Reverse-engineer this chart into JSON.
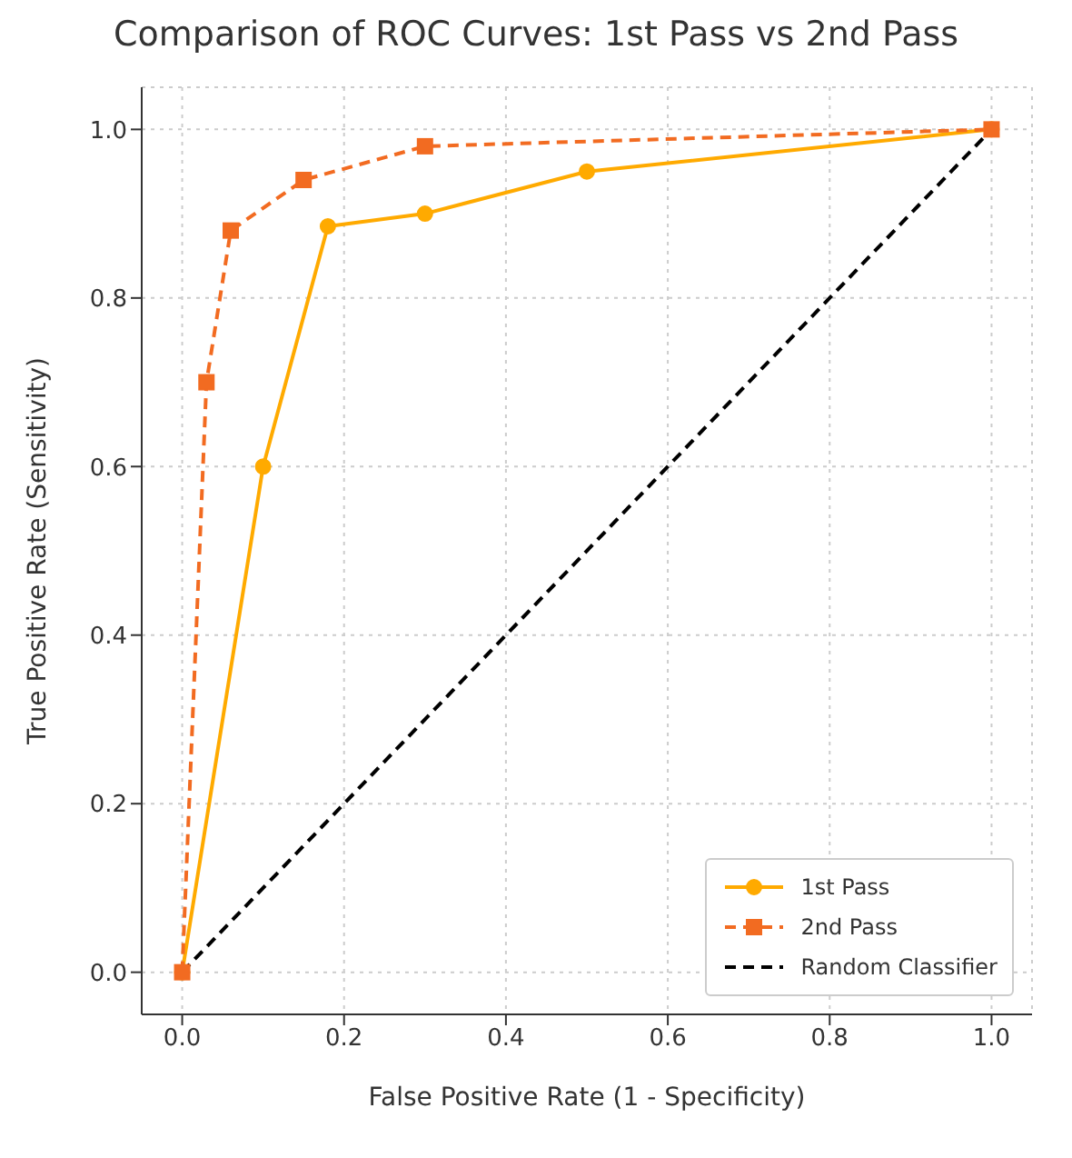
{
  "chart_data": {
    "type": "line",
    "title": "Comparison of ROC Curves: 1st Pass vs 2nd Pass",
    "xlabel": "False Positive Rate (1 - Specificity)",
    "ylabel": "True Positive Rate (Sensitivity)",
    "xlim": [
      -0.05,
      1.05
    ],
    "ylim": [
      -0.05,
      1.05
    ],
    "xticks": [
      {
        "value": 0,
        "label": "0.0"
      },
      0.2,
      0.4,
      0.6,
      0.8,
      {
        "value": 1,
        "label": "1.0"
      }
    ],
    "yticks": [
      {
        "value": 0,
        "label": "0.0"
      },
      0.2,
      0.4,
      0.6,
      0.8,
      {
        "value": 1,
        "label": "1.0"
      }
    ],
    "grid": true,
    "legend": "bottom right",
    "series": [
      {
        "name": "1st Pass",
        "color": "#ffaa00",
        "marker": "circle",
        "line_style": "solid",
        "x": [
          0,
          0.1,
          0.18,
          0.3,
          0.5,
          1
        ],
        "values": [
          0,
          0.6,
          0.885,
          0.9,
          0.95,
          1
        ]
      },
      {
        "name": "2nd Pass",
        "color": "#f26b21",
        "marker": "square",
        "line_style": "dashed",
        "x": [
          0,
          0.03,
          0.06,
          0.15,
          0.3,
          1
        ],
        "values": [
          0,
          0.7,
          0.88,
          0.94,
          0.98,
          1
        ]
      },
      {
        "name": "Random Classifier",
        "color": "#000000",
        "marker": "none",
        "line_style": "dashed",
        "x": [
          0,
          1
        ],
        "values": [
          0,
          1
        ]
      }
    ]
  }
}
